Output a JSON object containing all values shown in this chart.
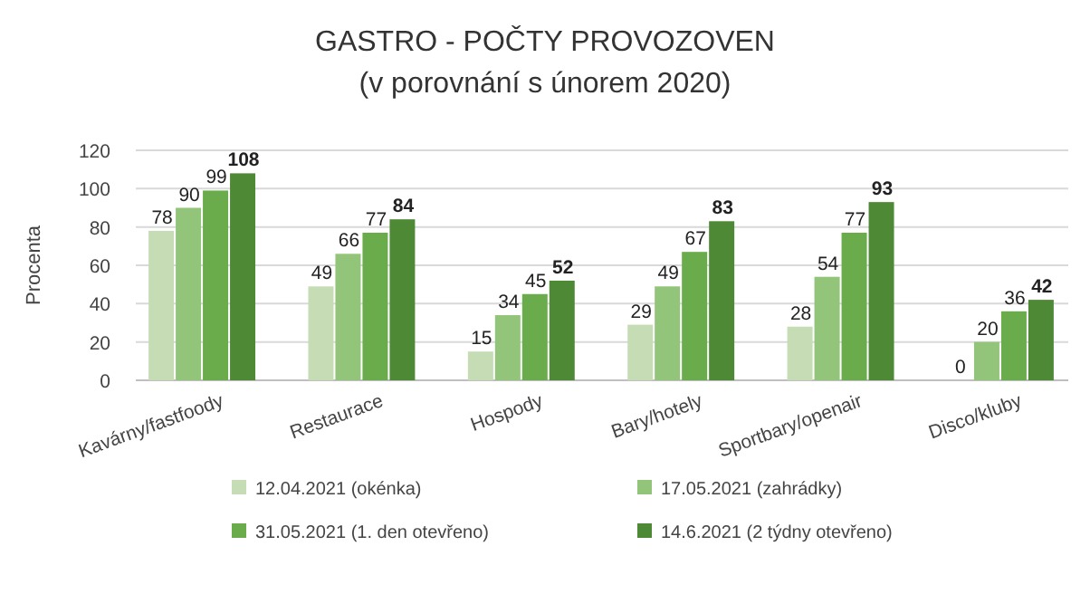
{
  "chart_data": {
    "type": "bar",
    "title": "GASTRO - POČTY PROVOZOVEN",
    "subtitle": "(v porovnání s únorem 2020)",
    "ylabel": "Procenta",
    "categories": [
      "Kavárny/fastfoody",
      "Restaurace",
      "Hospody",
      "Bary/hotely",
      "Sportbary/openair",
      "Disco/kluby"
    ],
    "series": [
      {
        "name": "12.04.2021 (okénka)",
        "color": "#c5dcb5",
        "values": [
          78,
          49,
          15,
          29,
          28,
          0
        ]
      },
      {
        "name": "17.05.2021 (zahrádky)",
        "color": "#92c47a",
        "values": [
          90,
          66,
          34,
          49,
          54,
          20
        ]
      },
      {
        "name": "31.05.2021 (1. den otevřeno)",
        "color": "#6aab4c",
        "values": [
          99,
          77,
          45,
          67,
          77,
          36
        ]
      },
      {
        "name": "14.6.2021 (2 týdny otevřeno)",
        "color": "#4e8a35",
        "values": [
          108,
          84,
          52,
          83,
          93,
          42
        ]
      }
    ],
    "ylim": [
      0,
      120
    ],
    "yticks": [
      0,
      20,
      40,
      60,
      80,
      100,
      120
    ],
    "grid": "y",
    "legend": "bottom",
    "data_labels": true
  }
}
